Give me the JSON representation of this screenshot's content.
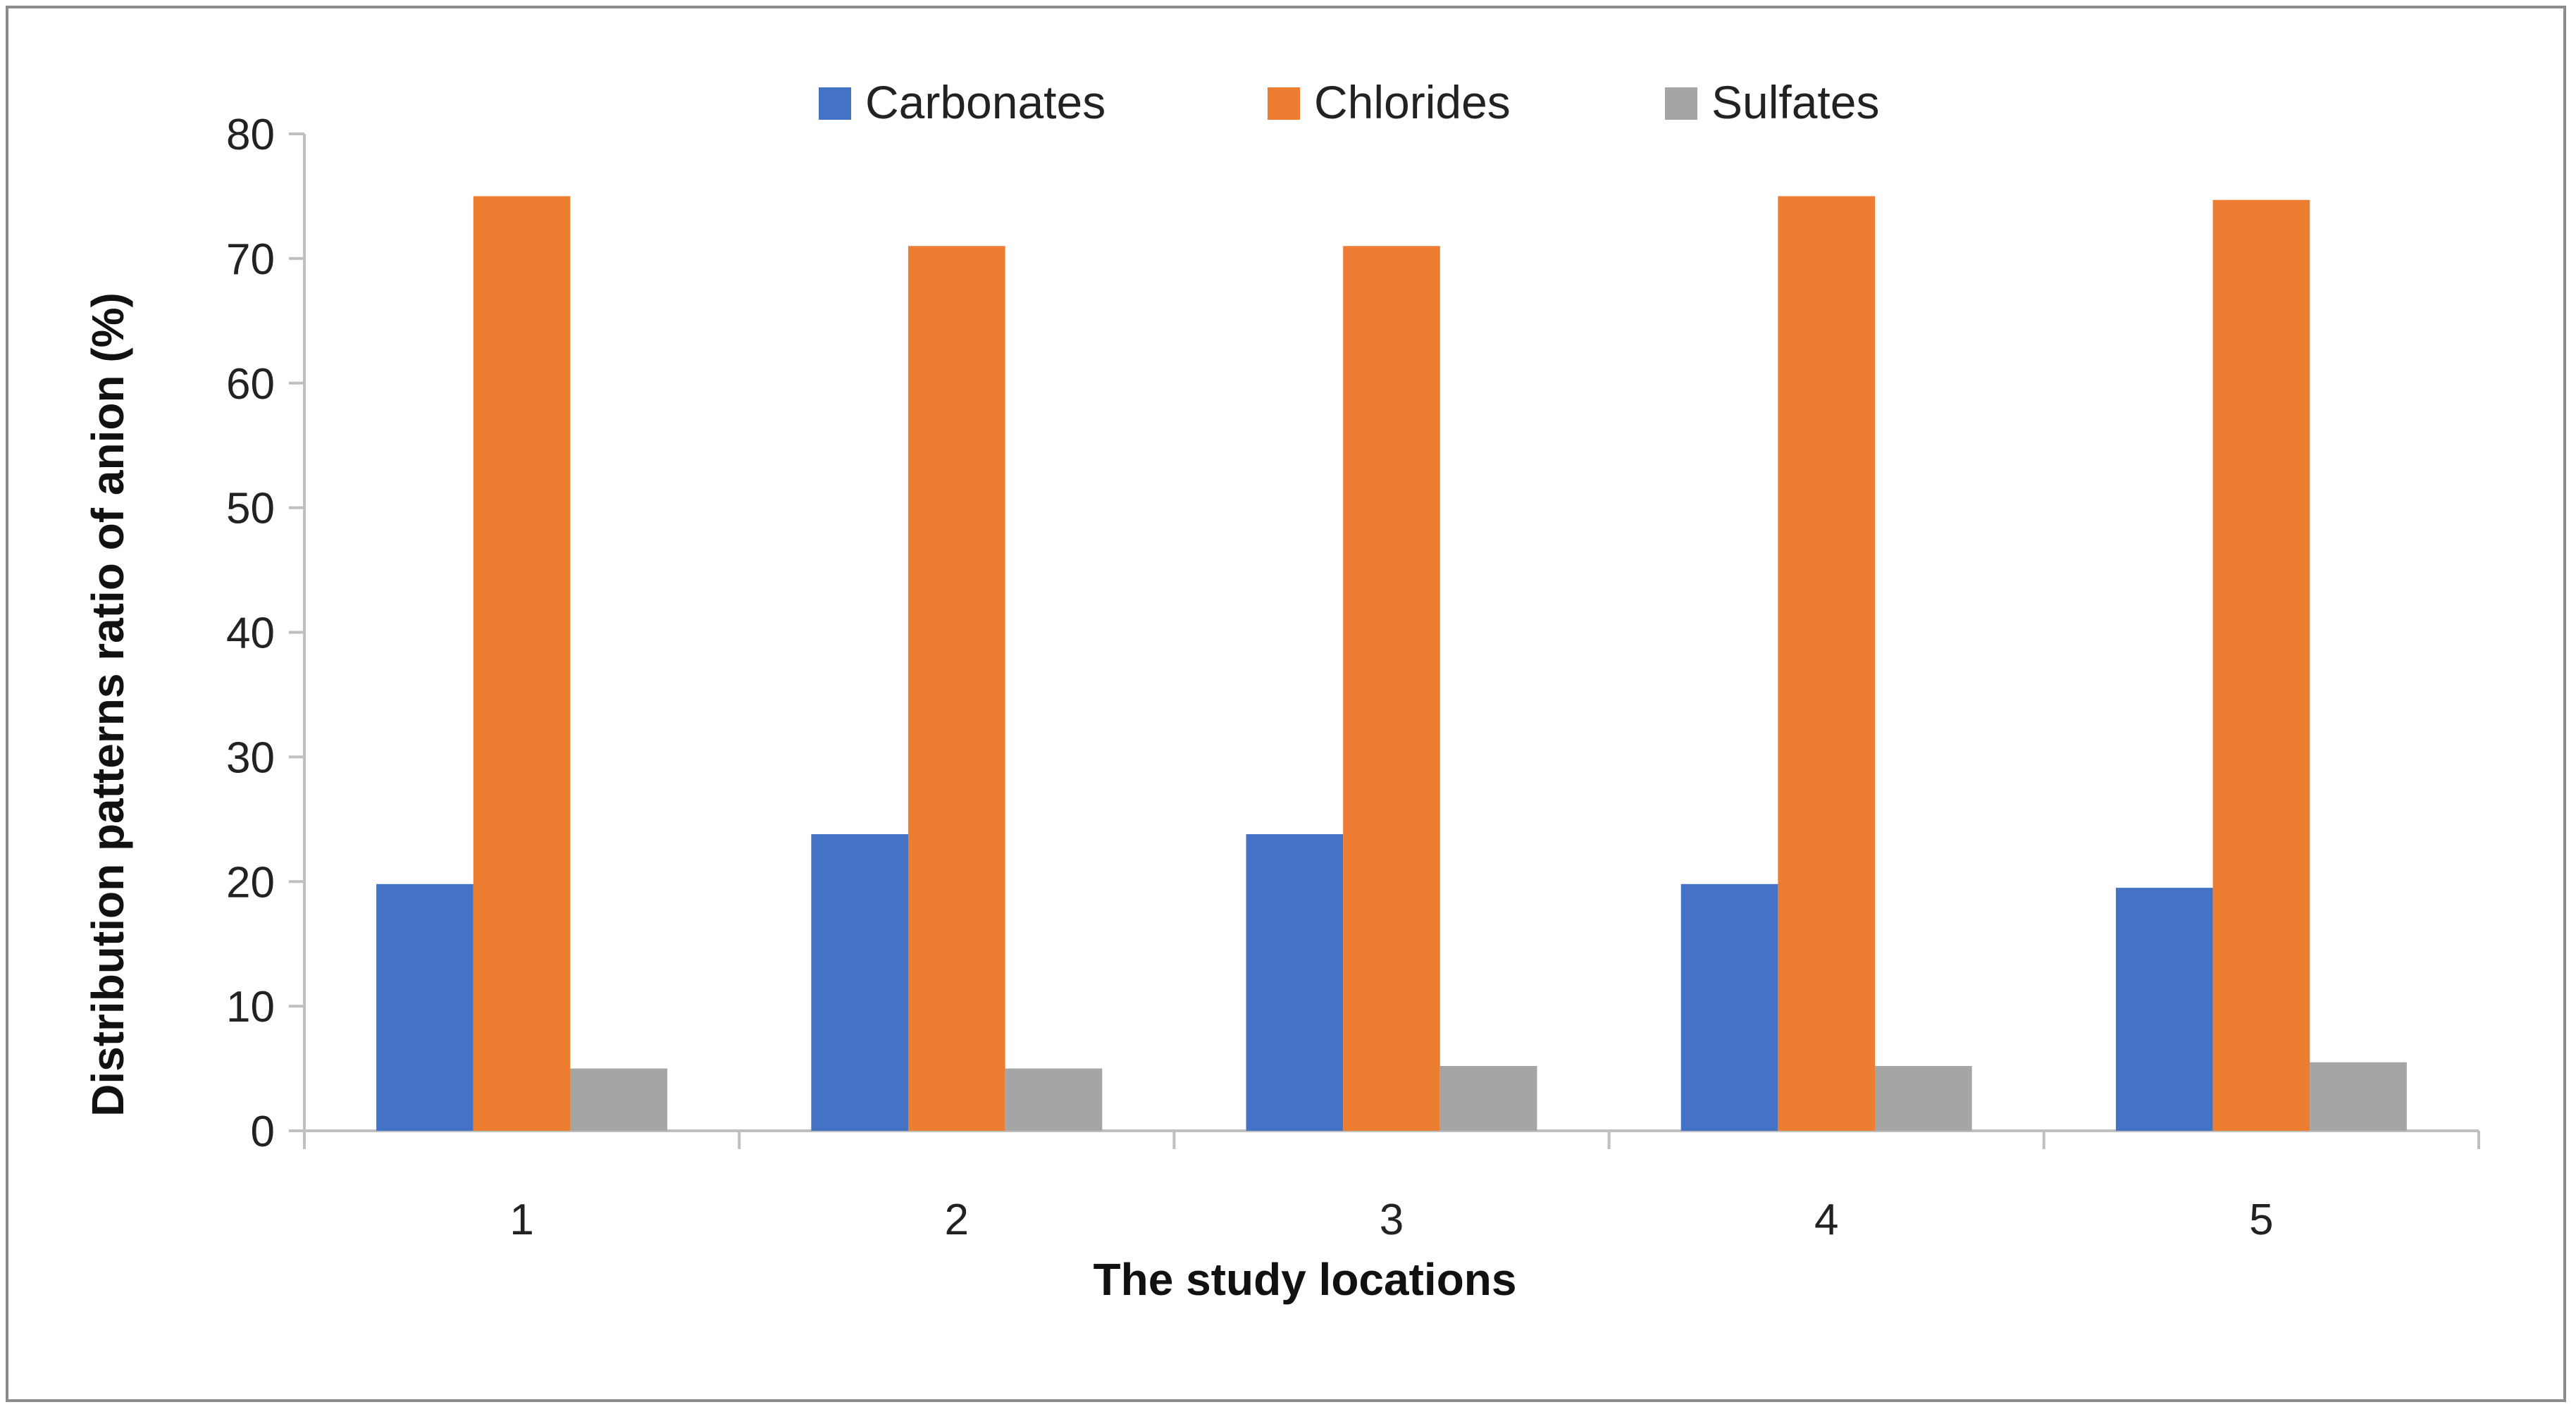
{
  "chart_data": {
    "type": "bar",
    "title": "",
    "xlabel": "The study locations",
    "ylabel": "Distribution patterns ratio of anion (%)",
    "categories": [
      "1",
      "2",
      "3",
      "4",
      "5"
    ],
    "ylim": [
      0,
      80
    ],
    "yticks": [
      0,
      10,
      20,
      30,
      40,
      50,
      60,
      70,
      80
    ],
    "grid": false,
    "legend_position": "top",
    "series": [
      {
        "name": "Carbonates",
        "color": "#4472C4",
        "values": [
          19.8,
          23.8,
          23.8,
          19.8,
          19.5
        ]
      },
      {
        "name": "Chlorides",
        "color": "#ED7D31",
        "values": [
          75.0,
          71.0,
          71.0,
          75.0,
          74.7
        ]
      },
      {
        "name": "Sulfates",
        "color": "#A5A5A5",
        "values": [
          5.0,
          5.0,
          5.2,
          5.2,
          5.5
        ]
      }
    ]
  }
}
